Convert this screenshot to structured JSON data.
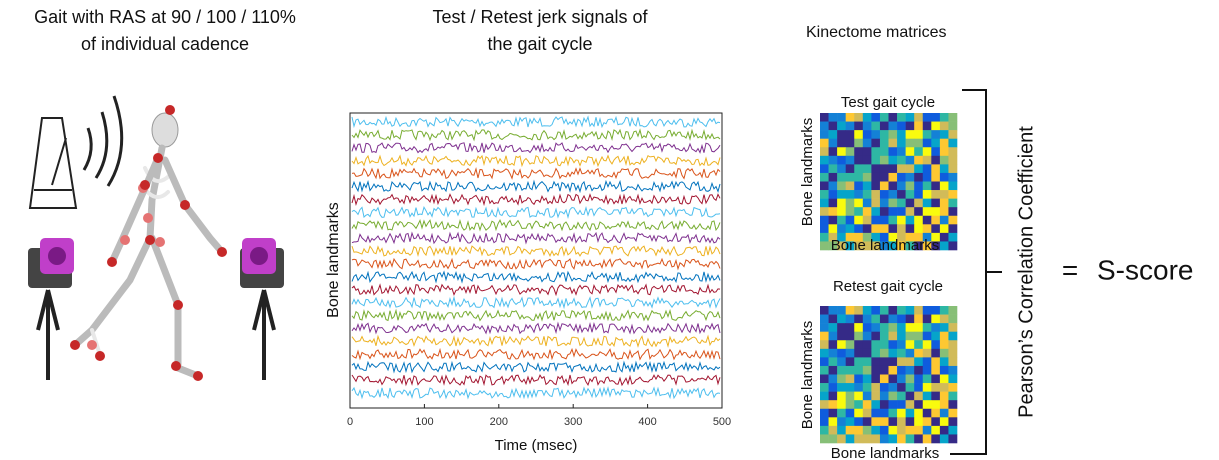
{
  "panel1": {
    "title_lines": [
      "Gait with RAS at 90 / 100 / 110%",
      "of individual cadence"
    ]
  },
  "panel2": {
    "title_lines": [
      "Test / Retest jerk signals of",
      "the gait cycle"
    ],
    "y_label": "Bone landmarks",
    "x_label": "Time (msec)",
    "xlim": [
      0,
      500
    ],
    "xticks": [
      0,
      100,
      200,
      300,
      400,
      500
    ]
  },
  "panel3": {
    "title": "Kinectome matrices",
    "matrices": [
      {
        "title": "Test gait cycle",
        "y_label": "Bone landmarks",
        "x_label": "Bone landmarks"
      },
      {
        "title": "Retest gait cycle",
        "y_label": "Bone landmarks",
        "x_label": "Bone landmarks"
      }
    ],
    "bracket_label": "Pearson’s Correlation Coefficient",
    "equals": "=",
    "result": "S-score"
  }
}
